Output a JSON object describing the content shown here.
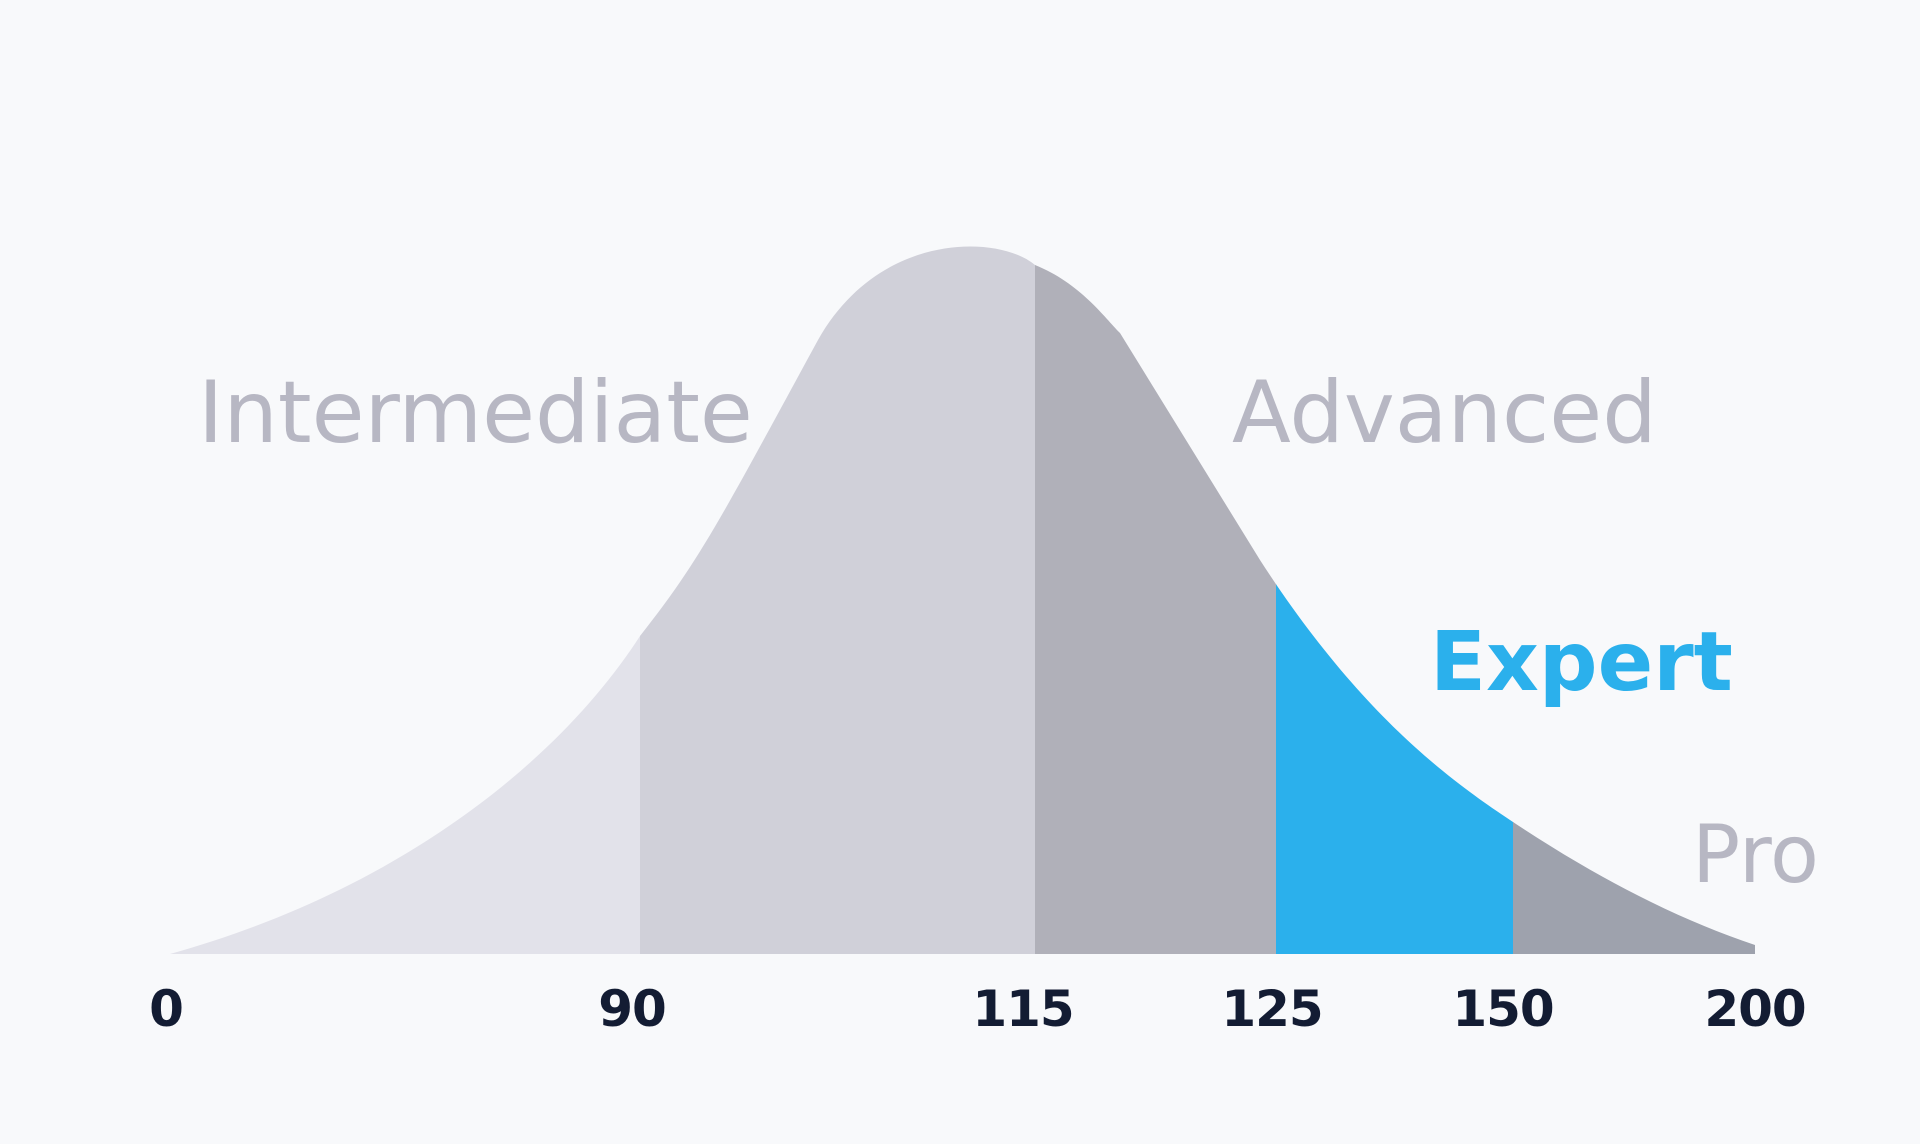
{
  "chart_data": {
    "type": "area",
    "title": "",
    "xlabel": "",
    "ylabel": "",
    "grid": false,
    "x_ticks": [
      {
        "value": 0,
        "label": "0"
      },
      {
        "value": 90,
        "label": "90"
      },
      {
        "value": 115,
        "label": "115"
      },
      {
        "value": 125,
        "label": "125"
      },
      {
        "value": 150,
        "label": "150"
      },
      {
        "value": 200,
        "label": "200"
      }
    ],
    "bands": [
      {
        "name": "",
        "range_label": "0–90",
        "color": "#e2e2ea"
      },
      {
        "name": "Intermediate",
        "range_label": "90–115",
        "color": "#d0d0d9"
      },
      {
        "name": "Advanced",
        "range_label": "115–125",
        "color": "#b0b0b9"
      },
      {
        "name": "Expert",
        "range_label": "125–150",
        "color": "#2bb0ec"
      },
      {
        "name": "Pro",
        "range_label": "150–200",
        "color": "#9ea2ad"
      }
    ],
    "label_colors": {
      "muted": "#b7b7c3",
      "highlight": "#2bb0ec",
      "ticks": "#131c33"
    }
  }
}
